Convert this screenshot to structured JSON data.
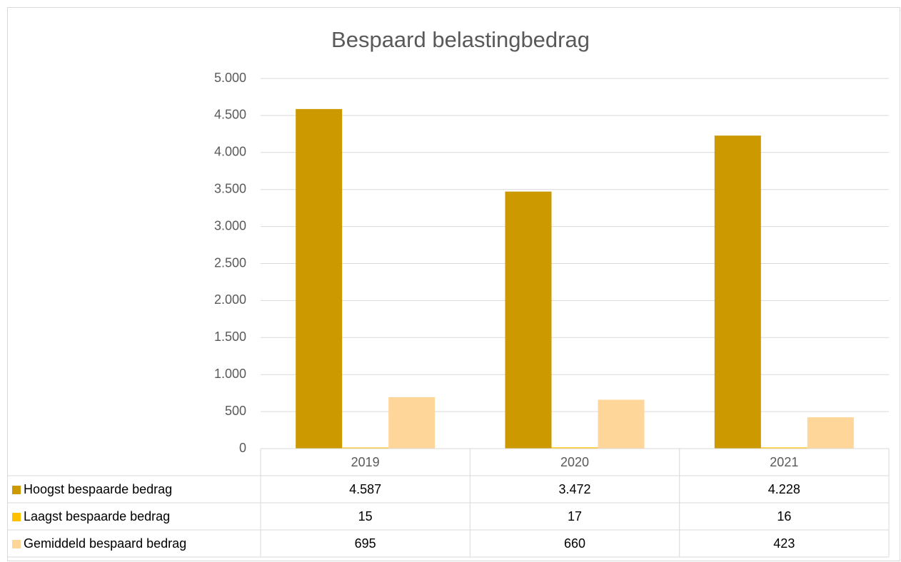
{
  "chart_data": {
    "type": "bar",
    "title": "Bespaard belastingbedrag",
    "categories": [
      "2019",
      "2020",
      "2021"
    ],
    "series": [
      {
        "name": "Hoogst bespaarde bedrag",
        "color": "#cc9900",
        "values": [
          4587,
          3472,
          4228
        ],
        "value_labels": [
          "4.587",
          "3.472",
          "4.228"
        ]
      },
      {
        "name": "Laagst bespaarde bedrag",
        "color": "#ffc000",
        "values": [
          15,
          17,
          16
        ]
      },
      {
        "name": "Gemiddeld bespaard bedrag",
        "color": "#ffd699",
        "values": [
          695,
          660,
          423
        ]
      }
    ],
    "ylim": [
      0,
      5000
    ],
    "yticks": [
      0,
      500,
      {
        "value": 1000,
        "label": "1.000"
      },
      {
        "value": 1500,
        "label": "1.500"
      },
      {
        "value": 2000,
        "label": "2.000"
      },
      {
        "value": 2500,
        "label": "2.500"
      },
      {
        "value": 3000,
        "label": "3.000"
      },
      {
        "value": 3500,
        "label": "3.500"
      },
      {
        "value": 4000,
        "label": "4.000"
      },
      {
        "value": 4500,
        "label": "4.500"
      },
      {
        "value": 5000,
        "label": "5.000"
      }
    ],
    "grid": true
  }
}
